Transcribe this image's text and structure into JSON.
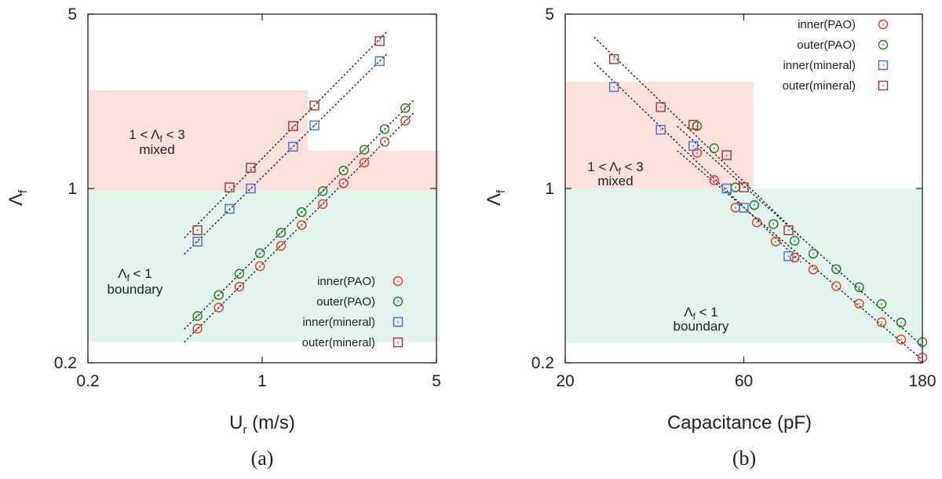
{
  "chart_data": [
    {
      "type": "scatter",
      "panel_label": "(a)",
      "xlabel": "U",
      "xlabel_sub": "r",
      "xlabel_unit": " (m/s)",
      "ylabel": "Λ",
      "ylabel_sub": "f",
      "xscale": "log",
      "yscale": "log",
      "xlim": [
        0.2,
        5
      ],
      "ylim": [
        0.2,
        5
      ],
      "xticks": [
        0.2,
        1,
        5
      ],
      "xtick_labels": [
        "0.2",
        "1",
        "5"
      ],
      "yticks": [
        0.2,
        1,
        5
      ],
      "ytick_labels": [
        "0.2",
        "1",
        "5"
      ],
      "regions": [
        {
          "name": "mixed",
          "label_line1": "1 < Λf < 3",
          "label_line2": "mixed",
          "color": "#fbe1de"
        },
        {
          "name": "boundary",
          "label_line1": "Λf < 1",
          "label_line2": "boundary",
          "color": "#e3f3ee"
        }
      ],
      "series": [
        {
          "name": "inner(PAO)",
          "marker": "circle",
          "color": "#e8352a",
          "x": [
            0.55,
            0.67,
            0.81,
            0.98,
            1.19,
            1.44,
            1.75,
            2.12,
            2.57,
            3.1,
            3.75
          ],
          "y": [
            0.274,
            0.333,
            0.404,
            0.488,
            0.589,
            0.713,
            0.866,
            1.05,
            1.27,
            1.54,
            1.87
          ]
        },
        {
          "name": "outer(PAO)",
          "marker": "circle",
          "color": "#1e7a1e",
          "x": [
            0.55,
            0.67,
            0.81,
            0.98,
            1.19,
            1.44,
            1.75,
            2.12,
            2.57,
            3.1,
            3.75
          ],
          "y": [
            0.308,
            0.374,
            0.455,
            0.55,
            0.664,
            0.804,
            0.976,
            1.18,
            1.43,
            1.73,
            2.1
          ]
        },
        {
          "name": "inner(mineral)",
          "marker": "square",
          "color": "#3f6fd8",
          "x": [
            0.55,
            0.74,
            0.9,
            1.33,
            1.62,
            2.96
          ],
          "y": [
            0.612,
            0.828,
            1.0,
            1.47,
            1.79,
            3.24
          ]
        },
        {
          "name": "outer(mineral)",
          "marker": "square",
          "color": "#a83232",
          "x": [
            0.55,
            0.74,
            0.9,
            1.33,
            1.62,
            2.96
          ],
          "y": [
            0.68,
            1.01,
            1.21,
            1.78,
            2.15,
            3.9
          ]
        }
      ],
      "legend": [
        "inner(PAO)",
        "outer(PAO)",
        "inner(mineral)",
        "outer(mineral)"
      ],
      "legend_position": "bottom-right"
    },
    {
      "type": "scatter",
      "panel_label": "(b)",
      "xlabel": "Capacitance (pF)",
      "ylabel": "Λ",
      "ylabel_sub": "f",
      "xscale": "log",
      "yscale": "log",
      "xlim": [
        20,
        180
      ],
      "ylim": [
        0.2,
        5
      ],
      "xticks": [
        20,
        60,
        180
      ],
      "xtick_labels": [
        "20",
        "60",
        "180"
      ],
      "yticks": [
        0.2,
        1,
        5
      ],
      "ytick_labels": [
        "0.2",
        "1",
        "5"
      ],
      "regions": [
        {
          "name": "mixed",
          "label_line1": "1 < Λf < 3",
          "label_line2": "mixed",
          "color": "#fbe1de"
        },
        {
          "name": "boundary",
          "label_line1": "Λf < 1",
          "label_line2": "boundary",
          "color": "#e3f3ee"
        }
      ],
      "series": [
        {
          "name": "inner(PAO)",
          "marker": "circle",
          "color": "#e8352a",
          "x": [
            45,
            50,
            57,
            65,
            73,
            82,
            92,
            106,
            122,
            140,
            158,
            180
          ],
          "y": [
            1.39,
            1.08,
            0.837,
            0.731,
            0.613,
            0.528,
            0.473,
            0.406,
            0.345,
            0.291,
            0.248,
            0.21
          ]
        },
        {
          "name": "outer(PAO)",
          "marker": "circle",
          "color": "#1e7a1e",
          "x": [
            45,
            50,
            57,
            64,
            72,
            82,
            92,
            106,
            122,
            140,
            158,
            180
          ],
          "y": [
            1.78,
            1.45,
            1.01,
            0.858,
            0.72,
            0.617,
            0.548,
            0.475,
            0.402,
            0.344,
            0.29,
            0.242
          ]
        },
        {
          "name": "inner(mineral)",
          "marker": "square",
          "color": "#3f6fd8",
          "x": [
            27,
            36,
            44,
            54,
            60,
            79
          ],
          "y": [
            2.55,
            1.72,
            1.48,
            1.0,
            0.837,
            0.535
          ]
        },
        {
          "name": "outer(mineral)",
          "marker": "square",
          "color": "#a83232",
          "x": [
            27,
            36,
            44,
            54,
            60,
            79
          ],
          "y": [
            3.3,
            2.12,
            1.8,
            1.36,
            1.01,
            0.68
          ]
        }
      ],
      "legend": [
        "inner(PAO)",
        "outer(PAO)",
        "inner(mineral)",
        "outer(mineral)"
      ],
      "legend_position": "top-right"
    }
  ]
}
